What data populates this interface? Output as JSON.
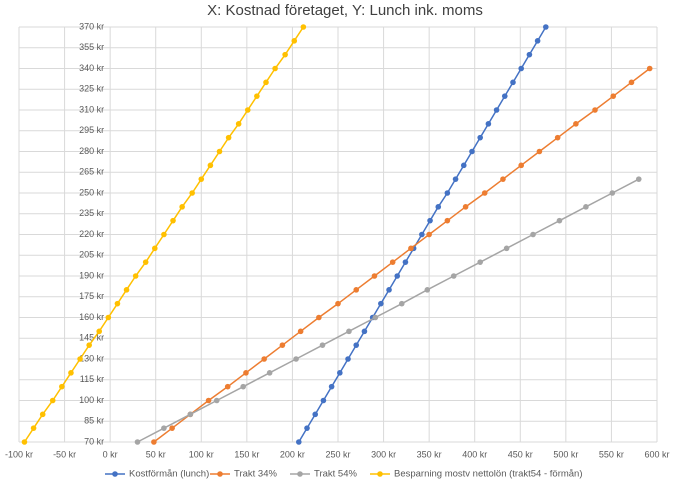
{
  "chart_data": {
    "type": "line",
    "title": "X: Kostnad företaget, Y: Lunch ink. moms",
    "xlim": [
      -100,
      600
    ],
    "xticks": [
      {
        "value": -100,
        "label": "-100 kr"
      },
      {
        "value": -50,
        "label": "-50 kr"
      },
      {
        "value": 0,
        "label": "0 kr"
      },
      {
        "value": 50,
        "label": "50 kr"
      },
      {
        "value": 100,
        "label": "100 kr"
      },
      {
        "value": 150,
        "label": "150 kr"
      },
      {
        "value": 200,
        "label": "200 kr"
      },
      {
        "value": 250,
        "label": "250 kr"
      },
      {
        "value": 300,
        "label": "300 kr"
      },
      {
        "value": 350,
        "label": "350 kr"
      },
      {
        "value": 400,
        "label": "400 kr"
      },
      {
        "value": 450,
        "label": "450 kr"
      },
      {
        "value": 500,
        "label": "500 kr"
      },
      {
        "value": 550,
        "label": "550 kr"
      },
      {
        "value": 600,
        "label": "600 kr"
      }
    ],
    "ylim": [
      70,
      370
    ],
    "yticks": [
      {
        "value": 70,
        "label": "70 kr"
      },
      {
        "value": 85,
        "label": "85 kr"
      },
      {
        "value": 100,
        "label": "100 kr"
      },
      {
        "value": 115,
        "label": "115 kr"
      },
      {
        "value": 130,
        "label": "130 kr"
      },
      {
        "value": 145,
        "label": "145 kr"
      },
      {
        "value": 160,
        "label": "160 kr"
      },
      {
        "value": 175,
        "label": "175 kr"
      },
      {
        "value": 190,
        "label": "190 kr"
      },
      {
        "value": 205,
        "label": "205 kr"
      },
      {
        "value": 220,
        "label": "220 kr"
      },
      {
        "value": 235,
        "label": "235 kr"
      },
      {
        "value": 250,
        "label": "250 kr"
      },
      {
        "value": 265,
        "label": "265 kr"
      },
      {
        "value": 280,
        "label": "280 kr"
      },
      {
        "value": 295,
        "label": "295 kr"
      },
      {
        "value": 310,
        "label": "310 kr"
      },
      {
        "value": 325,
        "label": "325 kr"
      },
      {
        "value": 340,
        "label": "340 kr"
      },
      {
        "value": 355,
        "label": "355 kr"
      },
      {
        "value": 370,
        "label": "370 kr"
      }
    ],
    "grid": true,
    "legend": "bottom",
    "series": [
      {
        "name": "Kostförmån (lunch)",
        "color": "#4472c4",
        "x": [
          207,
          216,
          225,
          234,
          243,
          252,
          261,
          270,
          279,
          288,
          297,
          306,
          315,
          324,
          333,
          342,
          351,
          360,
          370,
          379,
          388,
          397,
          406,
          415,
          424,
          433,
          442,
          451,
          460,
          469,
          478
        ],
        "values": [
          70,
          80,
          90,
          100,
          110,
          120,
          130,
          140,
          150,
          160,
          170,
          180,
          190,
          200,
          210,
          220,
          230,
          240,
          250,
          260,
          270,
          280,
          290,
          300,
          310,
          320,
          330,
          340,
          350,
          360,
          370
        ]
      },
      {
        "name": "Trakt 34%",
        "color": "#ed7d31",
        "x": [
          48,
          68,
          88,
          108,
          129,
          149,
          169,
          189,
          209,
          229,
          250,
          270,
          290,
          310,
          330,
          350,
          370,
          390,
          411,
          431,
          451,
          471,
          491,
          511,
          532,
          552,
          572,
          592
        ],
        "values": [
          70,
          80,
          90,
          100,
          110,
          120,
          130,
          140,
          150,
          160,
          170,
          180,
          190,
          200,
          210,
          220,
          230,
          240,
          250,
          260,
          270,
          280,
          290,
          300,
          310,
          320,
          330,
          340
        ]
      },
      {
        "name": "Trakt 54%",
        "color": "#a5a5a5",
        "x": [
          30,
          59,
          88,
          117,
          146,
          175,
          204,
          233,
          262,
          291,
          320,
          348,
          377,
          406,
          435,
          464,
          493,
          522,
          551,
          580
        ],
        "values": [
          70,
          80,
          90,
          100,
          110,
          120,
          130,
          140,
          150,
          160,
          170,
          180,
          190,
          200,
          210,
          220,
          230,
          240,
          250,
          260
        ]
      },
      {
        "name": "Besparning mostv nettolön (trakt54 - förmån)",
        "color": "#ffc000",
        "x": [
          -94,
          -84,
          -74,
          -63,
          -53,
          -43,
          -33,
          -23,
          -12,
          -2,
          8,
          18,
          28,
          39,
          49,
          59,
          69,
          79,
          90,
          100,
          110,
          120,
          130,
          141,
          151,
          161,
          171,
          181,
          192,
          202,
          212
        ],
        "values": [
          70,
          80,
          90,
          100,
          110,
          120,
          130,
          140,
          150,
          160,
          170,
          180,
          190,
          200,
          210,
          220,
          230,
          240,
          250,
          260,
          270,
          280,
          290,
          300,
          310,
          320,
          330,
          340,
          350,
          360,
          370
        ]
      }
    ]
  }
}
